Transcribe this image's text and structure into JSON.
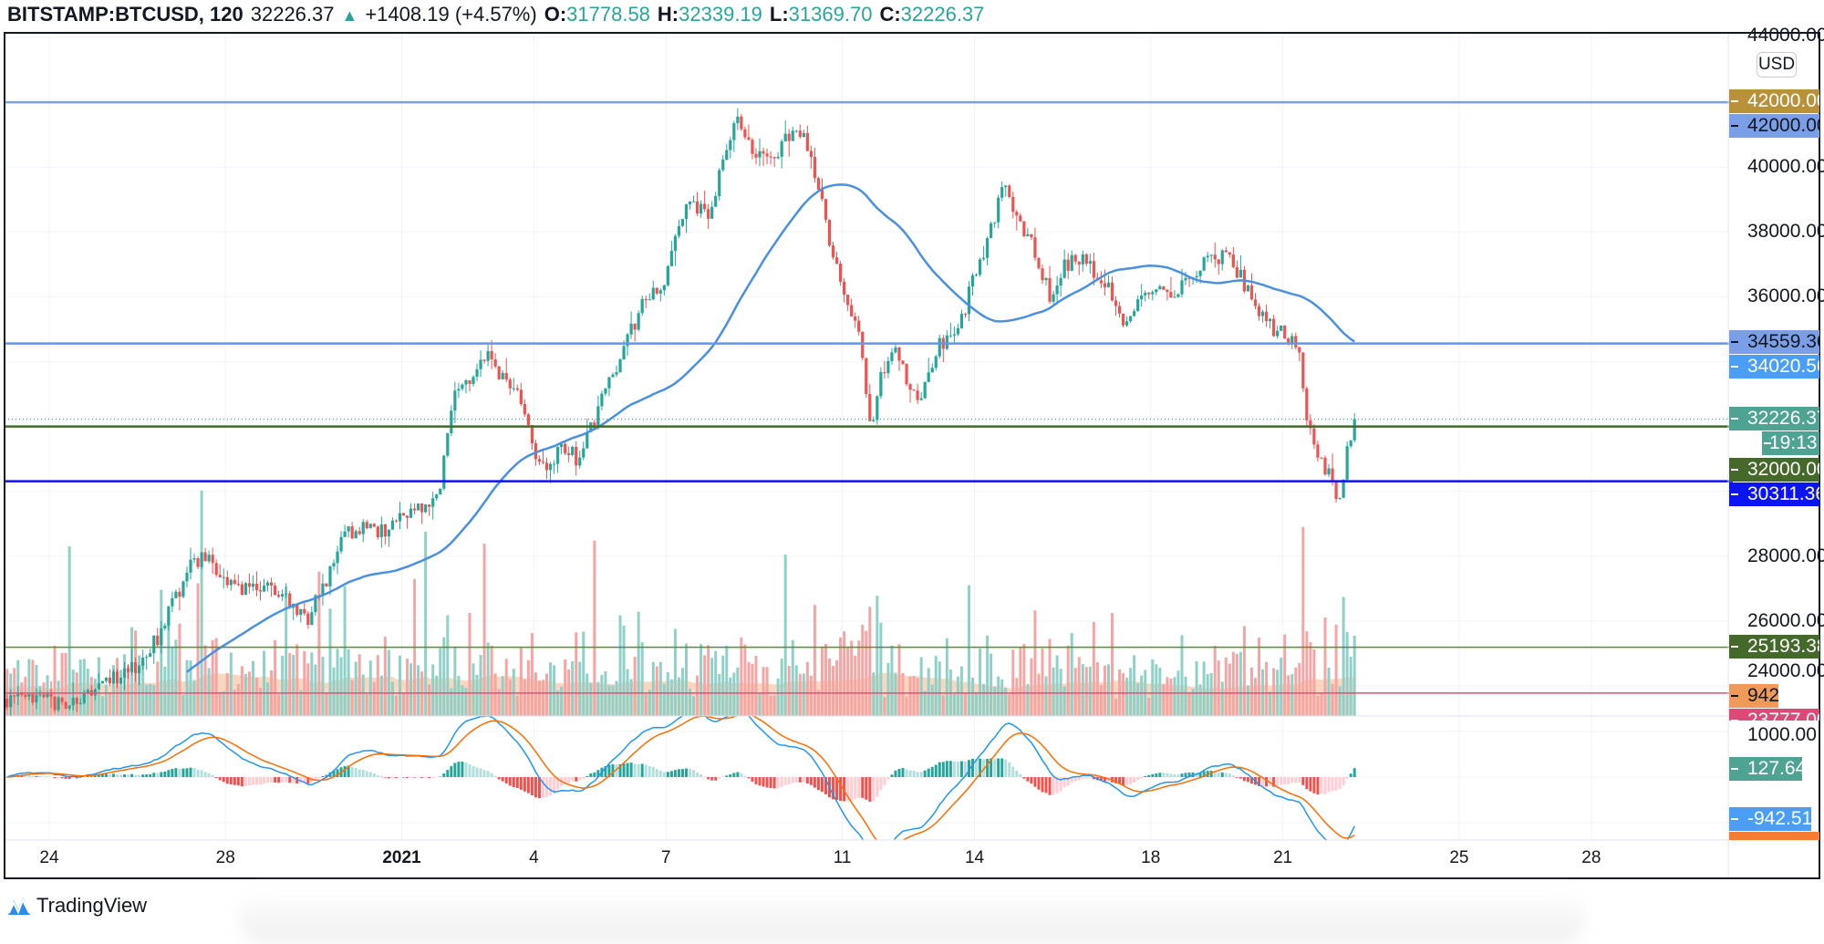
{
  "header": {
    "symbol": "BITSTAMP:BTCUSD, 120",
    "last": "32226.37",
    "change": "+1408.19 (+4.57%)",
    "o_label": "O:",
    "o": "31778.58",
    "h_label": "H:",
    "h": "32339.19",
    "l_label": "L:",
    "l": "31369.70",
    "c_label": "C:",
    "c": "32226.37"
  },
  "currency": "USD",
  "colors": {
    "up": "#26a69a",
    "down": "#ef5350",
    "ma": "#4a90e2",
    "macd": "#2196f3",
    "signal": "#ff6d00"
  },
  "price_labels": [
    {
      "text": "42000.00",
      "bg": "#b8913a",
      "fg": "#ffffff"
    },
    {
      "text": "42000.00",
      "bg": "#7b9fe6",
      "fg": "#131722"
    },
    {
      "text": "34559.36",
      "bg": "#7b9fe6",
      "fg": "#131722"
    },
    {
      "text": "34020.56",
      "bg": "#4a9ef5",
      "fg": "#ffffff"
    },
    {
      "text": "32226.37",
      "bg": "#4ea393",
      "fg": "#ffffff"
    },
    {
      "text": "19:13",
      "bg": "#4ea393",
      "fg": "#ffffff"
    },
    {
      "text": "32000.00",
      "bg": "#44692a",
      "fg": "#ffffff"
    },
    {
      "text": "30311.36",
      "bg": "#0a14f5",
      "fg": "#ffffff"
    },
    {
      "text": "25193.38",
      "bg": "#44692a",
      "fg": "#ffffff"
    },
    {
      "text": "942",
      "bg": "#f09a5a",
      "fg": "#131722"
    },
    {
      "text": "23777.00",
      "bg": "#dd4a77",
      "fg": "#ffffff"
    },
    {
      "text": "127.64",
      "bg": "#4ea393",
      "fg": "#ffffff"
    },
    {
      "text": "-942.51",
      "bg": "#4a9ef5",
      "fg": "#ffffff"
    }
  ],
  "chart_data": {
    "type": "candlestick",
    "symbol": "BITSTAMP:BTCUSD",
    "interval_minutes": 120,
    "y_ticks": [
      "44000.00",
      "40000.00",
      "38000.00",
      "36000.00",
      "28000.00",
      "26000.00",
      "24000.00"
    ],
    "y_tick_values": [
      44000,
      40000,
      38000,
      36000,
      28000,
      26000,
      24000
    ],
    "macd_ticks": [
      "1000.00"
    ],
    "x_ticks": [
      "24",
      "28",
      "2021",
      "4",
      "7",
      "11",
      "14",
      "18",
      "21",
      "25",
      "28"
    ],
    "x_tick_days": [
      1,
      5,
      9,
      12,
      15,
      19,
      22,
      26,
      29,
      33,
      36
    ],
    "x_origin": "Dec 23 2020 00:00 (day 0)",
    "horizontal_levels": [
      {
        "price": 42000,
        "color": "#7aa0e8"
      },
      {
        "price": 34559.36,
        "color": "#6a94e6"
      },
      {
        "price": 32000,
        "color": "#3f6b25"
      },
      {
        "price": 30311.36,
        "color": "#0a14f5"
      },
      {
        "price": 25193.38,
        "color": "#5a8a3a"
      },
      {
        "price": 23777,
        "color": "#e0507a"
      }
    ],
    "last_price": 32226.37,
    "price_path": [
      [
        0,
        23600
      ],
      [
        1,
        23500
      ],
      [
        1.5,
        23400
      ],
      [
        2,
        23700
      ],
      [
        2.6,
        24300
      ],
      [
        3,
        24600
      ],
      [
        3.5,
        25500
      ],
      [
        3.8,
        26400
      ],
      [
        4.3,
        27800
      ],
      [
        4.6,
        28000
      ],
      [
        5,
        27200
      ],
      [
        5.5,
        27000
      ],
      [
        6,
        27100
      ],
      [
        6.5,
        26600
      ],
      [
        6.9,
        26000
      ],
      [
        7.3,
        27200
      ],
      [
        7.7,
        28600
      ],
      [
        8.2,
        29000
      ],
      [
        8.7,
        28700
      ],
      [
        9,
        29300
      ],
      [
        9.5,
        29400
      ],
      [
        9.9,
        30000
      ],
      [
        10.2,
        32800
      ],
      [
        10.6,
        33500
      ],
      [
        10.9,
        34300
      ],
      [
        11.3,
        33600
      ],
      [
        11.7,
        33000
      ],
      [
        12,
        31500
      ],
      [
        12.3,
        30500
      ],
      [
        12.7,
        31500
      ],
      [
        13,
        31000
      ],
      [
        13.3,
        31800
      ],
      [
        13.8,
        33500
      ],
      [
        14.2,
        34800
      ],
      [
        14.6,
        36000
      ],
      [
        15,
        36500
      ],
      [
        15.3,
        38000
      ],
      [
        15.6,
        39000
      ],
      [
        16,
        38500
      ],
      [
        16.4,
        40500
      ],
      [
        16.7,
        41500
      ],
      [
        17,
        40500
      ],
      [
        17.4,
        40200
      ],
      [
        17.8,
        41000
      ],
      [
        18.2,
        40800
      ],
      [
        18.5,
        39500
      ],
      [
        18.8,
        37500
      ],
      [
        19.1,
        36000
      ],
      [
        19.4,
        35000
      ],
      [
        19.7,
        32000
      ],
      [
        19.9,
        33500
      ],
      [
        20.2,
        34500
      ],
      [
        20.5,
        33500
      ],
      [
        20.8,
        32800
      ],
      [
        21.2,
        34500
      ],
      [
        21.7,
        35000
      ],
      [
        22,
        36500
      ],
      [
        22.4,
        38000
      ],
      [
        22.7,
        39500
      ],
      [
        23,
        38500
      ],
      [
        23.4,
        37500
      ],
      [
        23.8,
        35800
      ],
      [
        24.1,
        37000
      ],
      [
        24.5,
        37200
      ],
      [
        24.9,
        36500
      ],
      [
        25.2,
        36000
      ],
      [
        25.5,
        35000
      ],
      [
        25.8,
        36000
      ],
      [
        26.2,
        36300
      ],
      [
        26.6,
        36200
      ],
      [
        27,
        36600
      ],
      [
        27.4,
        37200
      ],
      [
        27.8,
        37300
      ],
      [
        28,
        36800
      ],
      [
        28.4,
        35800
      ],
      [
        28.8,
        35000
      ],
      [
        29.1,
        34800
      ],
      [
        29.4,
        34500
      ],
      [
        29.6,
        32000
      ],
      [
        29.9,
        31000
      ],
      [
        30.1,
        30500
      ],
      [
        30.35,
        29500
      ],
      [
        30.5,
        31300
      ],
      [
        30.65,
        32226.37
      ]
    ],
    "ma_period": 50,
    "macd_params": [
      12,
      26,
      9
    ]
  },
  "logo": "TradingView"
}
